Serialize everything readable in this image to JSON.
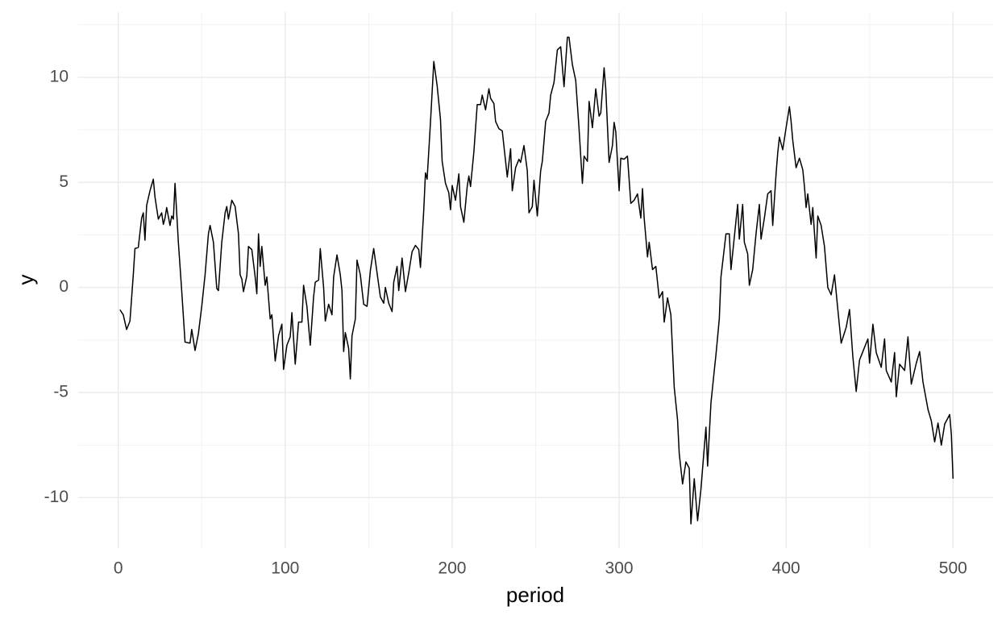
{
  "chart_data": {
    "type": "line",
    "x_label": "period",
    "y_label": "y",
    "color": "#000000",
    "xlim": [
      -24,
      524
    ],
    "ylim": [
      -12.4,
      13.1
    ],
    "xticks": [
      0,
      100,
      200,
      300,
      400,
      500
    ],
    "yticks": [
      -10,
      -5,
      0,
      5,
      10
    ],
    "x_minor_grid": [
      50,
      150,
      250,
      350,
      450
    ],
    "y_minor_grid": [
      -7.5,
      -2.5,
      2.5,
      7.5,
      12.5
    ],
    "grid": true,
    "x": [
      1,
      3,
      5,
      7,
      9,
      10,
      12,
      14,
      15,
      16,
      17,
      19,
      21,
      22,
      24,
      26,
      27,
      28,
      29,
      31,
      32,
      33,
      34,
      36,
      38,
      40,
      43,
      44,
      46,
      48,
      50,
      52,
      54,
      55,
      57,
      59,
      60,
      62,
      64,
      65,
      66,
      68,
      70,
      72,
      73,
      74,
      75,
      77,
      78,
      80,
      82,
      83,
      84,
      85,
      86,
      88,
      89,
      91,
      92,
      94,
      96,
      98,
      99,
      101,
      103,
      104,
      106,
      108,
      110,
      111,
      113,
      115,
      117,
      118,
      120,
      121,
      123,
      124,
      126,
      128,
      129,
      131,
      133,
      134,
      135,
      136,
      138,
      139,
      140,
      142,
      143,
      145,
      147,
      149,
      151,
      153,
      155,
      157,
      159,
      160,
      162,
      164,
      165,
      167,
      168,
      170,
      172,
      174,
      176,
      178,
      180,
      181,
      183,
      184,
      185,
      187,
      189,
      191,
      193,
      194,
      196,
      198,
      199,
      200,
      202,
      204,
      205,
      207,
      209,
      210,
      211,
      213,
      215,
      217,
      218,
      220,
      222,
      223,
      225,
      226,
      228,
      230,
      232,
      233,
      235,
      236,
      238,
      240,
      241,
      243,
      245,
      246,
      248,
      249,
      251,
      253,
      254,
      256,
      258,
      259,
      261,
      263,
      265,
      267,
      269,
      270,
      272,
      274,
      276,
      278,
      279,
      281,
      282,
      284,
      286,
      288,
      289,
      291,
      292,
      294,
      296,
      297,
      298,
      300,
      301,
      303,
      305,
      307,
      309,
      311,
      313,
      314,
      315,
      317,
      318,
      320,
      322,
      324,
      326,
      327,
      329,
      331,
      333,
      335,
      336,
      338,
      340,
      342,
      343,
      345,
      347,
      349,
      350,
      352,
      353,
      355,
      357,
      358,
      360,
      361,
      364,
      366,
      367,
      369,
      371,
      372,
      374,
      375,
      377,
      378,
      380,
      382,
      384,
      385,
      387,
      389,
      391,
      392,
      394,
      395,
      396,
      398,
      400,
      402,
      403,
      404,
      406,
      408,
      410,
      411,
      412,
      413,
      415,
      416,
      418,
      419,
      421,
      423,
      425,
      427,
      429,
      431,
      433,
      436,
      438,
      440,
      442,
      444,
      446,
      449,
      450,
      452,
      454,
      457,
      459,
      460,
      463,
      465,
      466,
      468,
      471,
      473,
      475,
      478,
      480,
      482,
      485,
      487,
      489,
      491,
      493,
      495,
      498,
      499,
      500
    ],
    "values": [
      -1.06,
      -1.3,
      -2.0,
      -1.6,
      0.6,
      1.85,
      1.9,
      3.3,
      3.55,
      2.25,
      3.9,
      4.6,
      5.15,
      4.3,
      3.25,
      3.55,
      3.0,
      3.3,
      3.8,
      2.95,
      3.4,
      3.25,
      4.95,
      2.15,
      -0.15,
      -2.6,
      -2.65,
      -2.0,
      -3.0,
      -2.2,
      -0.9,
      0.6,
      2.55,
      2.95,
      2.15,
      -0.05,
      -0.15,
      2.15,
      3.55,
      3.85,
      3.25,
      4.15,
      3.85,
      2.55,
      0.6,
      0.4,
      -0.2,
      0.55,
      1.95,
      1.8,
      0.5,
      -0.3,
      2.55,
      1.0,
      1.95,
      0.1,
      0.5,
      -1.5,
      -1.3,
      -3.5,
      -2.3,
      -1.75,
      -3.9,
      -2.75,
      -2.35,
      -1.2,
      -3.65,
      -1.65,
      -1.65,
      0.1,
      -0.9,
      -2.75,
      -0.45,
      0.25,
      0.35,
      1.85,
      0.0,
      -1.6,
      -0.8,
      -1.3,
      0.5,
      1.55,
      0.6,
      -0.15,
      -3.05,
      -2.15,
      -2.9,
      -4.35,
      -2.3,
      -1.5,
      1.3,
      0.6,
      -0.8,
      -0.9,
      0.8,
      1.85,
      0.7,
      -0.45,
      -0.75,
      0.0,
      -0.75,
      -1.15,
      0.25,
      1.0,
      -0.15,
      1.4,
      -0.2,
      0.7,
      1.7,
      2.0,
      1.8,
      0.95,
      3.7,
      5.45,
      5.15,
      7.85,
      10.75,
      9.6,
      8.0,
      6.0,
      4.95,
      4.5,
      3.7,
      4.85,
      4.15,
      5.4,
      3.85,
      3.1,
      4.8,
      5.3,
      4.8,
      6.45,
      8.7,
      8.7,
      9.15,
      8.45,
      9.45,
      9.0,
      8.75,
      7.9,
      7.55,
      7.45,
      6.0,
      5.25,
      6.6,
      4.6,
      5.7,
      6.1,
      5.95,
      6.75,
      5.55,
      3.55,
      3.85,
      5.1,
      3.4,
      5.55,
      6.0,
      7.9,
      8.3,
      9.15,
      9.75,
      11.3,
      11.45,
      9.55,
      11.9,
      11.9,
      10.6,
      9.85,
      7.55,
      4.95,
      6.25,
      6.0,
      8.85,
      7.6,
      9.45,
      8.15,
      8.3,
      10.45,
      9.45,
      5.95,
      6.75,
      7.85,
      7.4,
      4.6,
      6.15,
      6.1,
      6.25,
      4.0,
      4.15,
      4.45,
      3.3,
      4.7,
      3.3,
      1.45,
      2.15,
      0.85,
      1.0,
      -0.5,
      -0.2,
      -1.65,
      -0.5,
      -1.3,
      -4.75,
      -6.3,
      -7.9,
      -9.35,
      -8.3,
      -8.6,
      -11.25,
      -9.1,
      -11.1,
      -9.6,
      -8.6,
      -6.65,
      -8.5,
      -5.5,
      -3.95,
      -3.2,
      -1.5,
      0.5,
      2.55,
      2.55,
      0.85,
      2.4,
      3.95,
      2.3,
      3.95,
      2.15,
      1.6,
      0.1,
      0.85,
      2.55,
      3.95,
      2.3,
      3.3,
      4.45,
      4.6,
      2.95,
      5.4,
      6.4,
      7.15,
      6.55,
      7.6,
      8.6,
      7.9,
      7.0,
      5.7,
      6.15,
      5.6,
      4.8,
      3.8,
      4.45,
      3.0,
      3.8,
      1.4,
      3.4,
      2.95,
      1.95,
      0.0,
      -0.35,
      0.6,
      -1.05,
      -2.65,
      -1.9,
      -1.05,
      -3.3,
      -4.95,
      -3.45,
      -3.05,
      -2.45,
      -3.6,
      -1.75,
      -3.1,
      -3.8,
      -2.45,
      -3.95,
      -4.5,
      -3.1,
      -5.2,
      -3.65,
      -3.95,
      -2.35,
      -4.6,
      -3.6,
      -3.05,
      -4.5,
      -5.8,
      -6.35,
      -7.35,
      -6.45,
      -7.5,
      -6.5,
      -6.05,
      -7.0,
      -9.1
    ]
  }
}
